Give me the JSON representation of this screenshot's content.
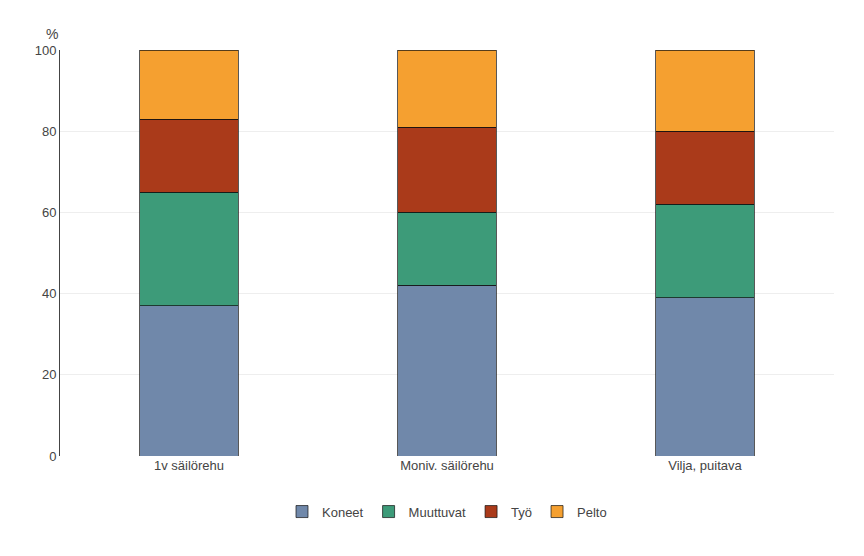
{
  "chart_data": {
    "type": "bar",
    "stacked": true,
    "ylabel": "%",
    "categories": [
      "1v säilörehu",
      "Moniv. säilörehu",
      "Vilja, puitava"
    ],
    "series": [
      {
        "name": "Koneet",
        "color": "#7088aa",
        "values": [
          37,
          42,
          39
        ]
      },
      {
        "name": "Muuttuvat",
        "color": "#3d9b79",
        "values": [
          28,
          18,
          23
        ]
      },
      {
        "name": "Työ",
        "color": "#aa3a1a",
        "values": [
          18,
          21,
          18
        ]
      },
      {
        "name": "Pelto",
        "color": "#f5a030",
        "values": [
          17,
          19,
          20
        ]
      }
    ],
    "ylim": [
      0,
      100
    ],
    "yticks": [
      0,
      20,
      40,
      60,
      80,
      100
    ],
    "grid": true,
    "legend": "bottom"
  }
}
